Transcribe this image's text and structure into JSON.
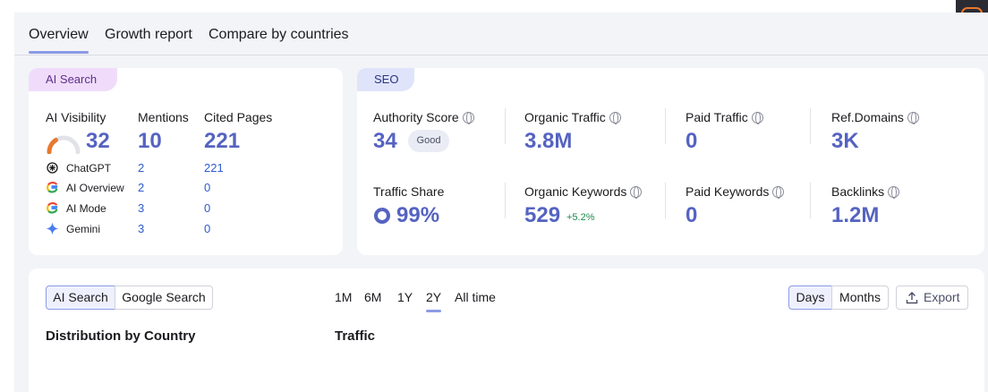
{
  "tabs": [
    "Overview",
    "Growth report",
    "Compare by countries"
  ],
  "ai_card": {
    "tag": "AI Search",
    "headers": [
      "AI Visibility",
      "Mentions",
      "Cited Pages"
    ],
    "totals": {
      "visibility": "32",
      "mentions": "10",
      "cited": "221"
    },
    "gauge_fraction": 0.32,
    "rows": [
      {
        "name": "ChatGPT",
        "icon": "chatgpt-icon",
        "mentions": "2",
        "cited": "221"
      },
      {
        "name": "AI Overview",
        "icon": "google-icon",
        "mentions": "2",
        "cited": "0"
      },
      {
        "name": "AI Mode",
        "icon": "google-icon",
        "mentions": "3",
        "cited": "0"
      },
      {
        "name": "Gemini",
        "icon": "gemini-icon",
        "mentions": "3",
        "cited": "0"
      }
    ]
  },
  "seo_card": {
    "tag": "SEO",
    "authority_label": "Authority Score",
    "authority_value": "34",
    "authority_badge": "Good",
    "organic_traffic_label": "Organic Traffic",
    "organic_traffic_value": "3.8M",
    "paid_traffic_label": "Paid Traffic",
    "paid_traffic_value": "0",
    "refdomains_label": "Ref.Domains",
    "refdomains_value": "3K",
    "traffic_share_label": "Traffic Share",
    "traffic_share_value": "99%",
    "traffic_share_fraction": 0.99,
    "organic_keywords_label": "Organic Keywords",
    "organic_keywords_value": "529",
    "organic_keywords_change": "+5.2%",
    "paid_keywords_label": "Paid Keywords",
    "paid_keywords_value": "0",
    "backlinks_label": "Backlinks",
    "backlinks_value": "1.2M"
  },
  "bottom": {
    "source_toggle": [
      "AI Search",
      "Google Search"
    ],
    "periods": [
      "1M",
      "6M",
      "1Y",
      "2Y",
      "All time"
    ],
    "active_period": "2Y",
    "granularity": [
      "Days",
      "Months"
    ],
    "export_label": "Export",
    "distribution_title": "Distribution by Country",
    "traffic_title": "Traffic"
  },
  "colors": {
    "accent": "#5563c1",
    "link": "#2d5bd0",
    "good": "#1f8a4c",
    "gauge": "#e8782f"
  }
}
